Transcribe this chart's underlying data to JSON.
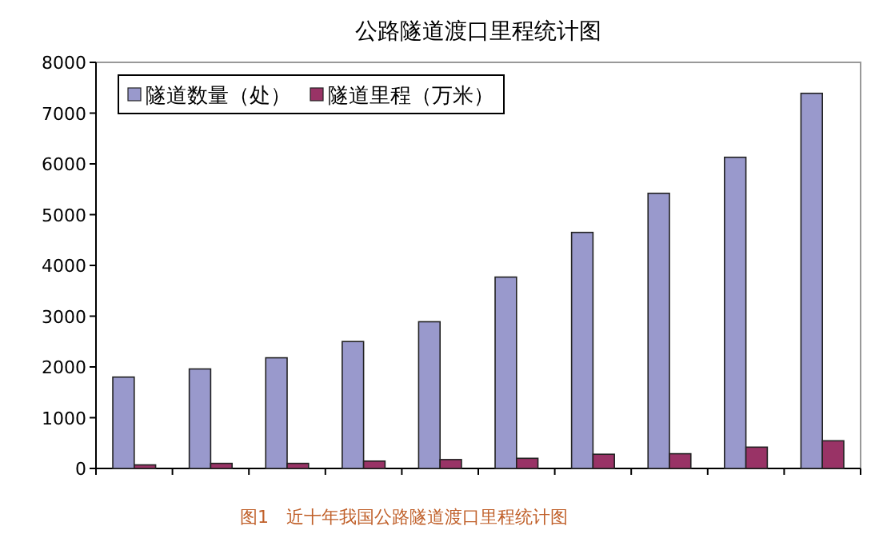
{
  "chart_data": {
    "type": "bar",
    "title": "公路隧道渡口里程统计图",
    "categories": [
      null,
      null,
      null,
      null,
      null,
      null,
      null,
      null,
      null,
      null
    ],
    "series": [
      {
        "name": "隧道数量（处）",
        "color": "#9999cc",
        "values": [
          1800,
          1960,
          2180,
          2500,
          2890,
          3770,
          4650,
          5420,
          6130,
          7390
        ]
      },
      {
        "name": "隧道里程（万米）",
        "color": "#993366",
        "values": [
          70,
          100,
          100,
          145,
          175,
          200,
          280,
          290,
          420,
          545
        ]
      }
    ],
    "ylim": [
      0,
      8000
    ],
    "yticks": [
      0,
      1000,
      2000,
      3000,
      4000,
      5000,
      6000,
      7000,
      8000
    ],
    "grid": false,
    "legend": "top left",
    "annotations": [
      "图1　近十年我国公路隧道渡口里程统计图"
    ]
  }
}
